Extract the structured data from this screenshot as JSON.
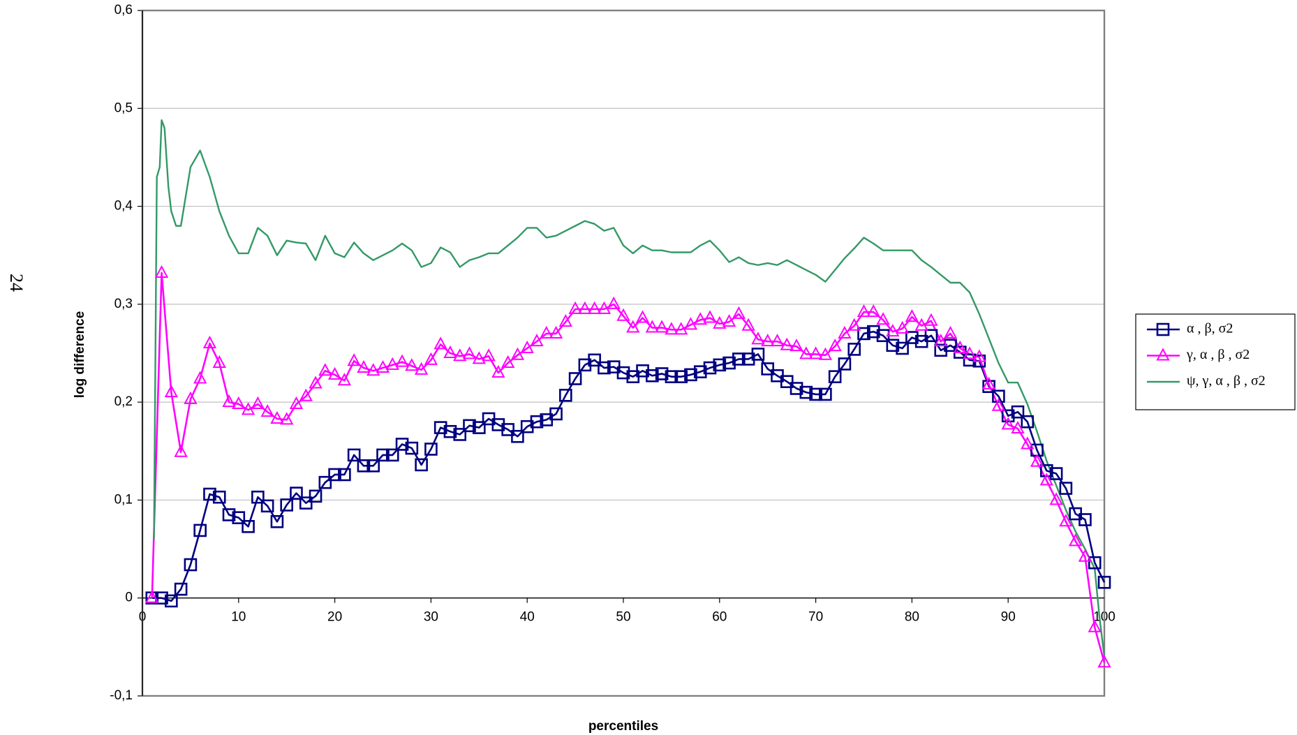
{
  "page_number": "24",
  "chart_data": {
    "type": "line",
    "xlabel": "percentiles",
    "ylabel": "log difference",
    "xlim": [
      0,
      100
    ],
    "xticks": [
      0,
      10,
      20,
      30,
      40,
      50,
      60,
      70,
      80,
      90,
      100
    ],
    "ylim": [
      -0.1,
      0.6
    ],
    "yticks": [
      {
        "value": -0.1,
        "label": "-0,1"
      },
      0,
      {
        "value": 0.1,
        "label": "0,1"
      },
      {
        "value": 0.2,
        "label": "0,2"
      },
      {
        "value": 0.3,
        "label": "0,3"
      },
      {
        "value": 0.4,
        "label": "0,4"
      },
      {
        "value": 0.5,
        "label": "0,5"
      },
      {
        "value": 0.6,
        "label": "0,6"
      }
    ],
    "grid": true,
    "legend": "right",
    "series": [
      {
        "name": "α , β, σ2",
        "color": "#000080",
        "marker": "square",
        "x": [
          1,
          2,
          3,
          4,
          5,
          6,
          7,
          8,
          9,
          10,
          11,
          12,
          13,
          14,
          15,
          16,
          17,
          18,
          19,
          20,
          21,
          22,
          23,
          24,
          25,
          26,
          27,
          28,
          29,
          30,
          31,
          32,
          33,
          34,
          35,
          36,
          37,
          38,
          39,
          40,
          41,
          42,
          43,
          44,
          45,
          46,
          47,
          48,
          49,
          50,
          51,
          52,
          53,
          54,
          55,
          56,
          57,
          58,
          59,
          60,
          61,
          62,
          63,
          64,
          65,
          66,
          67,
          68,
          69,
          70,
          71,
          72,
          73,
          74,
          75,
          76,
          77,
          78,
          79,
          80,
          81,
          82,
          83,
          84,
          85,
          86,
          87,
          88,
          89,
          90,
          91,
          92,
          93,
          94,
          95,
          96,
          97,
          98,
          99,
          100
        ],
        "values": [
          0,
          0,
          -0.003,
          0.009,
          0.034,
          0.069,
          0.106,
          0.103,
          0.085,
          0.082,
          0.073,
          0.103,
          0.094,
          0.078,
          0.095,
          0.107,
          0.097,
          0.104,
          0.118,
          0.126,
          0.126,
          0.146,
          0.135,
          0.135,
          0.146,
          0.146,
          0.157,
          0.153,
          0.136,
          0.152,
          0.174,
          0.17,
          0.167,
          0.176,
          0.174,
          0.183,
          0.177,
          0.172,
          0.165,
          0.175,
          0.18,
          0.182,
          0.188,
          0.207,
          0.224,
          0.238,
          0.243,
          0.235,
          0.236,
          0.23,
          0.226,
          0.232,
          0.227,
          0.229,
          0.226,
          0.226,
          0.228,
          0.231,
          0.235,
          0.238,
          0.24,
          0.244,
          0.244,
          0.249,
          0.234,
          0.227,
          0.221,
          0.214,
          0.21,
          0.208,
          0.208,
          0.226,
          0.239,
          0.254,
          0.27,
          0.272,
          0.268,
          0.258,
          0.255,
          0.266,
          0.262,
          0.268,
          0.253,
          0.258,
          0.251,
          0.243,
          0.242,
          0.216,
          0.206,
          0.186,
          0.19,
          0.18,
          0.151,
          0.13,
          0.127,
          0.112,
          0.086,
          0.08,
          0.036,
          0.016
        ]
      },
      {
        "name": "γ, α , β , σ2",
        "color": "#ff00ff",
        "marker": "triangle",
        "x": [
          1,
          2,
          3,
          4,
          5,
          6,
          7,
          8,
          9,
          10,
          11,
          12,
          13,
          14,
          15,
          16,
          17,
          18,
          19,
          20,
          21,
          22,
          23,
          24,
          25,
          26,
          27,
          28,
          29,
          30,
          31,
          32,
          33,
          34,
          35,
          36,
          37,
          38,
          39,
          40,
          41,
          42,
          43,
          44,
          45,
          46,
          47,
          48,
          49,
          50,
          51,
          52,
          53,
          54,
          55,
          56,
          57,
          58,
          59,
          60,
          61,
          62,
          63,
          64,
          65,
          66,
          67,
          68,
          69,
          70,
          71,
          72,
          73,
          74,
          75,
          76,
          77,
          78,
          79,
          80,
          81,
          82,
          83,
          84,
          85,
          86,
          87,
          88,
          89,
          90,
          91,
          92,
          93,
          94,
          95,
          96,
          97,
          98,
          99,
          100
        ],
        "values": [
          0,
          0.332,
          0.21,
          0.149,
          0.203,
          0.224,
          0.26,
          0.24,
          0.2,
          0.198,
          0.192,
          0.198,
          0.19,
          0.183,
          0.182,
          0.198,
          0.206,
          0.219,
          0.232,
          0.228,
          0.222,
          0.242,
          0.235,
          0.232,
          0.235,
          0.238,
          0.241,
          0.237,
          0.233,
          0.243,
          0.259,
          0.25,
          0.247,
          0.249,
          0.244,
          0.247,
          0.23,
          0.24,
          0.248,
          0.255,
          0.262,
          0.27,
          0.27,
          0.282,
          0.295,
          0.295,
          0.295,
          0.295,
          0.3,
          0.288,
          0.276,
          0.286,
          0.276,
          0.276,
          0.274,
          0.274,
          0.279,
          0.284,
          0.286,
          0.28,
          0.282,
          0.29,
          0.278,
          0.264,
          0.262,
          0.262,
          0.258,
          0.257,
          0.249,
          0.249,
          0.248,
          0.257,
          0.27,
          0.278,
          0.292,
          0.292,
          0.284,
          0.272,
          0.275,
          0.287,
          0.278,
          0.283,
          0.262,
          0.27,
          0.255,
          0.249,
          0.246,
          0.218,
          0.196,
          0.177,
          0.173,
          0.157,
          0.139,
          0.12,
          0.1,
          0.078,
          0.058,
          0.042,
          -0.03,
          -0.066
        ]
      },
      {
        "name": "ψ, γ, α , β , σ2",
        "color": "#339966",
        "marker": "none",
        "x": [
          1.2,
          1.5,
          1.8,
          2,
          2.3,
          2.7,
          3,
          3.5,
          4,
          4.5,
          5,
          6,
          7,
          8,
          9,
          10,
          11,
          12,
          13,
          14,
          15,
          16,
          17,
          18,
          19,
          20,
          21,
          22,
          23,
          24,
          25,
          26,
          27,
          28,
          29,
          30,
          31,
          32,
          33,
          34,
          35,
          36,
          37,
          38,
          39,
          40,
          41,
          42,
          43,
          44,
          45,
          46,
          47,
          48,
          49,
          50,
          51,
          52,
          53,
          54,
          55,
          56,
          57,
          58,
          59,
          60,
          61,
          62,
          63,
          64,
          65,
          66,
          67,
          68,
          69,
          70,
          71,
          72,
          73,
          74,
          75,
          76,
          77,
          78,
          79,
          80,
          81,
          82,
          83,
          84,
          85,
          86,
          87,
          88,
          89,
          90,
          91,
          92,
          93,
          94,
          95,
          96,
          97,
          98,
          99,
          99.5,
          100
        ],
        "values": [
          0.06,
          0.43,
          0.44,
          0.488,
          0.48,
          0.42,
          0.395,
          0.38,
          0.38,
          0.41,
          0.44,
          0.457,
          0.43,
          0.395,
          0.37,
          0.352,
          0.352,
          0.378,
          0.37,
          0.35,
          0.365,
          0.363,
          0.362,
          0.345,
          0.37,
          0.352,
          0.348,
          0.363,
          0.352,
          0.345,
          0.35,
          0.355,
          0.362,
          0.355,
          0.338,
          0.342,
          0.358,
          0.353,
          0.338,
          0.345,
          0.348,
          0.352,
          0.352,
          0.36,
          0.368,
          0.378,
          0.378,
          0.368,
          0.37,
          0.375,
          0.38,
          0.385,
          0.382,
          0.375,
          0.378,
          0.36,
          0.352,
          0.36,
          0.355,
          0.355,
          0.353,
          0.353,
          0.353,
          0.36,
          0.365,
          0.355,
          0.343,
          0.348,
          0.342,
          0.34,
          0.342,
          0.34,
          0.345,
          0.34,
          0.335,
          0.33,
          0.323,
          0.335,
          0.347,
          0.357,
          0.368,
          0.362,
          0.355,
          0.355,
          0.355,
          0.355,
          0.345,
          0.338,
          0.33,
          0.322,
          0.322,
          0.312,
          0.29,
          0.265,
          0.24,
          0.22,
          0.22,
          0.198,
          0.17,
          0.14,
          0.115,
          0.09,
          0.068,
          0.05,
          0.03,
          -0.02,
          -0.06
        ]
      }
    ]
  }
}
